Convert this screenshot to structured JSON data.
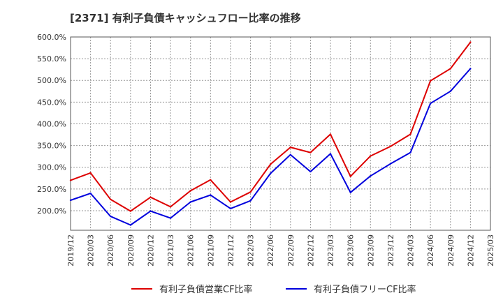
{
  "chart_data": {
    "type": "line",
    "title": "[2371]  有利子負債キャッシュフロー比率の推移",
    "x": [
      "2019/12",
      "2020/03",
      "2020/06",
      "2020/09",
      "2020/12",
      "2021/03",
      "2021/06",
      "2021/09",
      "2021/12",
      "2022/03",
      "2022/06",
      "2022/09",
      "2022/12",
      "2023/03",
      "2023/06",
      "2023/09",
      "2023/12",
      "2024/03",
      "2024/06",
      "2024/09",
      "2024/12"
    ],
    "x_ticks": [
      "2019/12",
      "2020/03",
      "2020/06",
      "2020/09",
      "2020/12",
      "2021/03",
      "2021/06",
      "2021/09",
      "2021/12",
      "2022/03",
      "2022/06",
      "2022/09",
      "2022/12",
      "2023/03",
      "2023/06",
      "2023/09",
      "2023/12",
      "2024/03",
      "2024/06",
      "2024/09",
      "2024/12",
      "2025/03"
    ],
    "y_ticks": [
      "200.0%",
      "250.0%",
      "300.0%",
      "350.0%",
      "400.0%",
      "450.0%",
      "500.0%",
      "550.0%",
      "600.0%"
    ],
    "ylim": [
      155,
      600
    ],
    "grid": true,
    "legend_position": "bottom",
    "series": [
      {
        "name": "有利子負債営業CF比率",
        "color": "#dd0000",
        "values": [
          270,
          287,
          226,
          199,
          231,
          209,
          246,
          271,
          220,
          243,
          307,
          346,
          334,
          376,
          279,
          326,
          348,
          376,
          499,
          527,
          588
        ]
      },
      {
        "name": "有利子負債フリーCF比率",
        "color": "#0000dd",
        "values": [
          224,
          240,
          187,
          167,
          199,
          183,
          220,
          236,
          205,
          223,
          286,
          329,
          290,
          331,
          242,
          280,
          308,
          334,
          447,
          475,
          527
        ]
      }
    ]
  }
}
